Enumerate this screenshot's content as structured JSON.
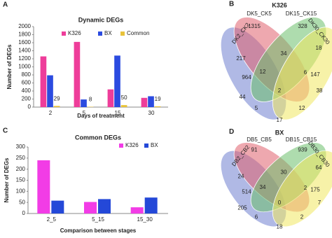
{
  "chart_data": [
    {
      "type": "bar",
      "panel": "A",
      "title": "Dynamic DEGs",
      "xlabel": "Days of treatment",
      "ylabel": "Number of DEGs",
      "categories": [
        "2",
        "5",
        "15",
        "30"
      ],
      "series": [
        {
          "name": "K326",
          "color": "#ee3d9a",
          "values": [
            1260,
            1620,
            440,
            230
          ]
        },
        {
          "name": "BX",
          "color": "#2b4be0",
          "values": [
            790,
            190,
            1280,
            270
          ]
        },
        {
          "name": "Common",
          "color": "#e8c23a",
          "values": [
            29,
            8,
            50,
            19
          ],
          "show_values": true
        }
      ],
      "ylim": [
        0,
        2000
      ],
      "yticks": [
        0,
        200,
        400,
        600,
        800,
        1000,
        1200,
        1400,
        1600,
        1800,
        2000
      ],
      "grid": false
    },
    {
      "type": "venn",
      "panel": "B",
      "title": "K326",
      "sets": [
        {
          "name": "DK2_CK2",
          "color": "#6f7fcf"
        },
        {
          "name": "DK5_CK5",
          "color": "#e0606e"
        },
        {
          "name": "DK15_CK15",
          "color": "#6cc06c"
        },
        {
          "name": "DK30_CK30",
          "color": "#f0e860"
        }
      ],
      "values": [
        1315,
        328,
        964,
        147,
        217,
        34,
        18,
        12,
        6,
        44,
        2,
        38,
        5,
        12,
        17
      ]
    },
    {
      "type": "bar",
      "panel": "C",
      "title": "Common DEGs",
      "xlabel": "Comparison between stages",
      "ylabel": "Number of DEGs",
      "categories": [
        "2_5",
        "5_15",
        "15_30"
      ],
      "series": [
        {
          "name": "K326",
          "color": "#f23ce6",
          "values": [
            240,
            52,
            28
          ]
        },
        {
          "name": "BX",
          "color": "#2448d8",
          "values": [
            58,
            65,
            72
          ]
        }
      ],
      "ylim": [
        0,
        300
      ],
      "yticks": [
        0,
        50,
        100,
        150,
        200,
        250,
        300
      ],
      "grid": false
    },
    {
      "type": "venn",
      "panel": "D",
      "title": "BX",
      "sets": [
        {
          "name": "DB2_CB2",
          "color": "#6f7fcf"
        },
        {
          "name": "DB5_CB5",
          "color": "#e0606e"
        },
        {
          "name": "DB15_CB15",
          "color": "#6cc06c"
        },
        {
          "name": "DB30_CB30",
          "color": "#f0e860"
        }
      ],
      "values": [
        91,
        939,
        514,
        175,
        24,
        30,
        64,
        34,
        2,
        205,
        0,
        7,
        6,
        2,
        18
      ]
    }
  ]
}
